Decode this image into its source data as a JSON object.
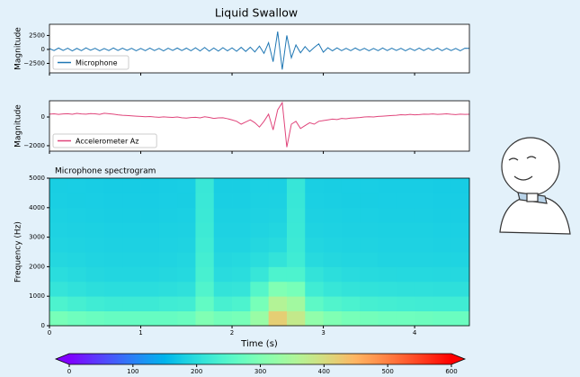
{
  "title": "Liquid Swallow",
  "chart_data": [
    {
      "type": "line",
      "ylabel": "Magnitude",
      "legend": "lower left",
      "xlim": [
        0,
        4.6
      ],
      "xticks": [
        0,
        1,
        2,
        3,
        4
      ],
      "ylim": [
        -4200,
        4500
      ],
      "yticks": [
        2500,
        0,
        {
          "value": -2500,
          "label": "−2500"
        }
      ],
      "x": [
        0,
        0.05,
        0.1,
        0.15,
        0.2,
        0.25,
        0.3,
        0.35,
        0.4,
        0.45,
        0.5,
        0.55,
        0.6,
        0.65,
        0.7,
        0.75,
        0.8,
        0.85,
        0.9,
        0.95,
        1,
        1.05,
        1.1,
        1.15,
        1.2,
        1.25,
        1.3,
        1.35,
        1.4,
        1.45,
        1.5,
        1.55,
        1.6,
        1.65,
        1.7,
        1.75,
        1.8,
        1.85,
        1.9,
        1.95,
        2,
        2.05,
        2.1,
        2.15,
        2.2,
        2.25,
        2.3,
        2.35,
        2.4,
        2.45,
        2.5,
        2.55,
        2.6,
        2.65,
        2.7,
        2.75,
        2.8,
        2.85,
        2.9,
        2.95,
        3,
        3.05,
        3.1,
        3.15,
        3.2,
        3.25,
        3.3,
        3.35,
        3.4,
        3.45,
        3.5,
        3.55,
        3.6,
        3.65,
        3.7,
        3.75,
        3.8,
        3.85,
        3.9,
        3.95,
        4,
        4.05,
        4.1,
        4.15,
        4.2,
        4.25,
        4.3,
        4.35,
        4.4,
        4.45,
        4.5,
        4.55,
        4.6
      ],
      "series": [
        {
          "name": "Microphone",
          "color": "#1f77b4",
          "values": [
            150,
            -200,
            250,
            -180,
            220,
            -260,
            190,
            -230,
            280,
            -150,
            200,
            -240,
            170,
            -210,
            260,
            -190,
            230,
            -170,
            210,
            -250,
            180,
            -220,
            240,
            -200,
            190,
            -260,
            220,
            -180,
            250,
            -210,
            230,
            -240,
            300,
            -280,
            350,
            -320,
            260,
            -300,
            320,
            -250,
            280,
            -330,
            380,
            -360,
            400,
            -450,
            600,
            -700,
            1200,
            -2200,
            3200,
            -3600,
            2500,
            -1500,
            800,
            -600,
            500,
            -400,
            350,
            1000,
            -500,
            300,
            -250,
            280,
            -220,
            200,
            -230,
            250,
            -190,
            210,
            -240,
            180,
            -220,
            260,
            -200,
            230,
            -180,
            210,
            -250,
            190,
            -210,
            240,
            -200,
            220,
            -190,
            250,
            -230,
            200,
            -210,
            180,
            -240,
            220,
            200
          ]
        }
      ]
    },
    {
      "type": "line",
      "ylabel": "Magnitude",
      "legend": "lower left",
      "xlim": [
        0,
        4.6
      ],
      "xticks": [
        0,
        1,
        2,
        3,
        4
      ],
      "ylim": [
        -2380,
        1130
      ],
      "yticks": [
        0,
        {
          "value": -2000,
          "label": "−2000"
        }
      ],
      "x": [
        0,
        0.05,
        0.1,
        0.15,
        0.2,
        0.25,
        0.3,
        0.35,
        0.4,
        0.45,
        0.5,
        0.55,
        0.6,
        0.65,
        0.7,
        0.75,
        0.8,
        0.85,
        0.9,
        0.95,
        1,
        1.05,
        1.1,
        1.15,
        1.2,
        1.25,
        1.3,
        1.35,
        1.4,
        1.45,
        1.5,
        1.55,
        1.6,
        1.65,
        1.7,
        1.75,
        1.8,
        1.85,
        1.9,
        1.95,
        2,
        2.05,
        2.1,
        2.15,
        2.2,
        2.25,
        2.3,
        2.35,
        2.4,
        2.45,
        2.5,
        2.55,
        2.6,
        2.65,
        2.7,
        2.75,
        2.8,
        2.85,
        2.9,
        2.95,
        3,
        3.05,
        3.1,
        3.15,
        3.2,
        3.25,
        3.3,
        3.35,
        3.4,
        3.45,
        3.5,
        3.55,
        3.6,
        3.65,
        3.7,
        3.75,
        3.8,
        3.85,
        3.9,
        3.95,
        4,
        4.05,
        4.1,
        4.15,
        4.2,
        4.25,
        4.3,
        4.35,
        4.4,
        4.45,
        4.5,
        4.55,
        4.6
      ],
      "series": [
        {
          "name": "Accelerometer Az",
          "color": "#e0457b",
          "values": [
            200,
            220,
            180,
            210,
            230,
            190,
            250,
            210,
            200,
            240,
            220,
            180,
            260,
            230,
            200,
            150,
            120,
            100,
            80,
            60,
            40,
            20,
            30,
            0,
            -20,
            10,
            -10,
            -30,
            0,
            -50,
            -80,
            -40,
            -20,
            -60,
            20,
            -30,
            -100,
            -60,
            -50,
            -120,
            -200,
            -300,
            -500,
            -350,
            -200,
            -400,
            -700,
            -300,
            200,
            -900,
            500,
            1000,
            -2100,
            -500,
            -300,
            -800,
            -600,
            -400,
            -500,
            -300,
            -250,
            -200,
            -150,
            -180,
            -100,
            -120,
            -80,
            -60,
            -40,
            0,
            20,
            0,
            40,
            60,
            80,
            100,
            120,
            160,
            140,
            180,
            150,
            170,
            200,
            190,
            210,
            180,
            200,
            220,
            190,
            170,
            200,
            180,
            190
          ]
        }
      ]
    },
    {
      "type": "heatmap",
      "title": "Microphone spectrogram",
      "xlabel": "Time (s)",
      "ylabel": "Frequency (Hz)",
      "colormap": "rainbow",
      "xlim": [
        0,
        4.6
      ],
      "xticks": [
        0,
        1,
        2,
        3,
        4
      ],
      "ylim": [
        0,
        5000
      ],
      "yticks": [
        0,
        1000,
        2000,
        3000,
        4000,
        5000
      ],
      "x": [
        0,
        0.2,
        0.4,
        0.6,
        0.8,
        1,
        1.2,
        1.4,
        1.6,
        1.8,
        2,
        2.2,
        2.4,
        2.6,
        2.8,
        3,
        3.2,
        3.4,
        3.6,
        3.8,
        4,
        4.2,
        4.4,
        4.6
      ],
      "y": [
        0,
        500,
        1000,
        1500,
        2000,
        2500,
        3000,
        3500,
        4000,
        4500,
        5000
      ],
      "z": [
        [
          290,
          280,
          275,
          270,
          270,
          270,
          270,
          275,
          300,
          285,
          290,
          330,
          420,
          380,
          320,
          300,
          290,
          285,
          280,
          280,
          278,
          275,
          275
        ],
        [
          240,
          232,
          225,
          222,
          222,
          222,
          225,
          228,
          265,
          235,
          240,
          290,
          360,
          340,
          260,
          245,
          238,
          232,
          230,
          228,
          226,
          225,
          225
        ],
        [
          212,
          206,
          202,
          200,
          200,
          200,
          202,
          205,
          245,
          210,
          212,
          250,
          300,
          290,
          225,
          215,
          210,
          208,
          206,
          205,
          205,
          204,
          204
        ],
        [
          200,
          196,
          192,
          190,
          190,
          190,
          192,
          194,
          235,
          198,
          200,
          215,
          240,
          240,
          210,
          202,
          198,
          196,
          195,
          194,
          194,
          193,
          193
        ],
        [
          192,
          190,
          188,
          186,
          186,
          186,
          188,
          190,
          230,
          192,
          194,
          200,
          210,
          225,
          196,
          192,
          190,
          190,
          188,
          188,
          188,
          187,
          187
        ],
        [
          188,
          186,
          185,
          184,
          184,
          184,
          185,
          186,
          225,
          188,
          188,
          192,
          196,
          222,
          190,
          188,
          186,
          186,
          185,
          185,
          185,
          184,
          184
        ],
        [
          185,
          184,
          183,
          182,
          182,
          182,
          183,
          184,
          222,
          185,
          185,
          188,
          190,
          220,
          186,
          185,
          184,
          184,
          183,
          183,
          183,
          182,
          182
        ],
        [
          183,
          182,
          181,
          180,
          180,
          180,
          181,
          182,
          220,
          183,
          183,
          185,
          186,
          218,
          184,
          183,
          182,
          182,
          181,
          181,
          181,
          180,
          180
        ],
        [
          181,
          180,
          179,
          178,
          178,
          178,
          179,
          180,
          218,
          181,
          181,
          183,
          184,
          216,
          182,
          181,
          180,
          180,
          179,
          179,
          179,
          178,
          178
        ],
        [
          180,
          179,
          178,
          177,
          177,
          177,
          178,
          179,
          217,
          180,
          180,
          182,
          182,
          215,
          181,
          180,
          179,
          179,
          178,
          178,
          178,
          177,
          177
        ]
      ],
      "clim": [
        0,
        600
      ],
      "cticks": [
        0,
        100,
        200,
        300,
        400,
        500,
        600
      ]
    }
  ]
}
